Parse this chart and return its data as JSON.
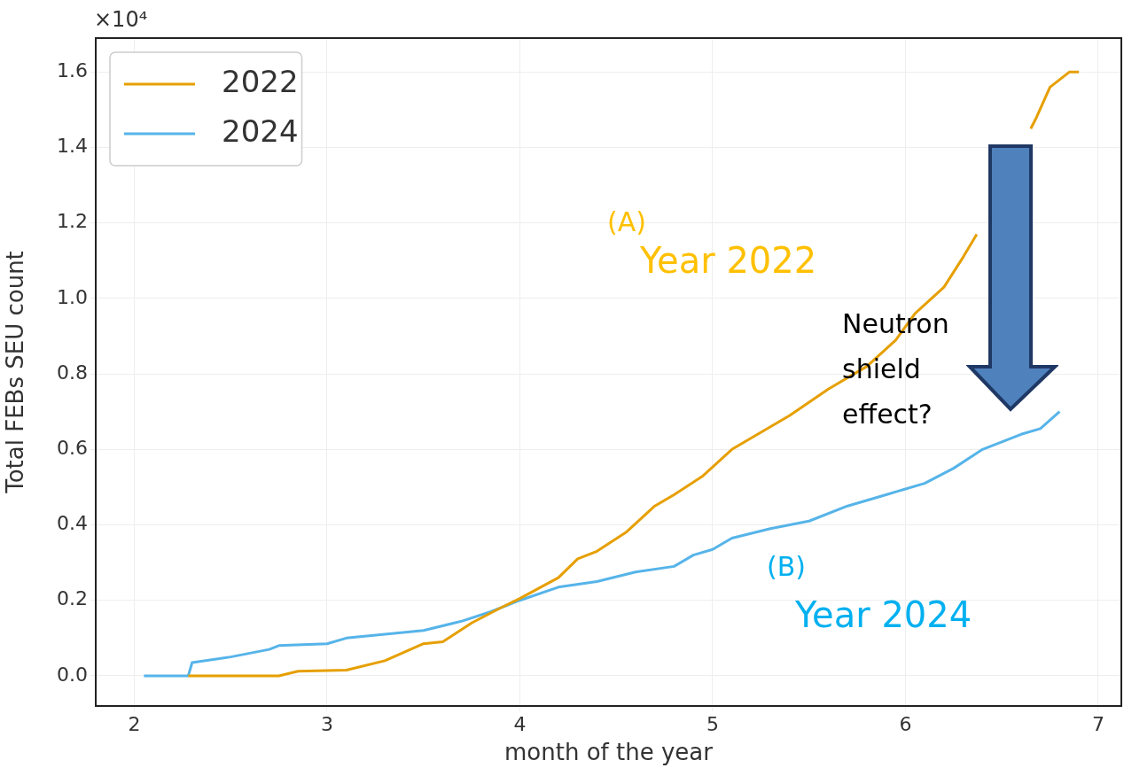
{
  "chart_data": {
    "type": "line",
    "xlabel": "month of the year",
    "ylabel": "Total FEBs SEU count",
    "xlim": [
      1.8,
      7.12
    ],
    "ylim": [
      -0.08,
      1.69
    ],
    "xticks": [
      2,
      3,
      4,
      5,
      6,
      7
    ],
    "yticks": [
      {
        "value": 0,
        "label": "0.0"
      },
      0.2,
      0.4,
      0.6,
      0.8,
      {
        "value": 1,
        "label": "1.0"
      },
      1.2,
      1.4,
      1.6
    ],
    "grid": true,
    "legend": "top left",
    "series": [
      {
        "name": "2022",
        "color": "#e69f00",
        "x": [
          2.28,
          2.75,
          2.85,
          3.1,
          3.3,
          3.5,
          3.6,
          3.75,
          3.9,
          4.0,
          4.2,
          4.3,
          4.4,
          4.55,
          4.7,
          4.8,
          4.95,
          5.1,
          5.3,
          5.4,
          5.6,
          5.8,
          5.95,
          6.05,
          6.2,
          6.3,
          6.37,
          6.48,
          6.55,
          6.65,
          6.68,
          6.75,
          6.8,
          6.85,
          6.9
        ],
        "values": [
          0,
          0,
          0.012,
          0.015,
          0.04,
          0.085,
          0.09,
          0.14,
          0.18,
          0.205,
          0.26,
          0.31,
          0.33,
          0.38,
          0.45,
          0.48,
          0.53,
          0.6,
          0.66,
          0.69,
          0.76,
          0.82,
          0.89,
          0.96,
          1.03,
          1.11,
          1.17,
          null,
          null,
          1.45,
          1.48,
          1.56,
          1.58,
          1.6,
          1.6
        ]
      },
      {
        "name": "2024",
        "color": "#56b4e9",
        "x": [
          2.05,
          2.28,
          2.3,
          2.5,
          2.7,
          2.75,
          3.0,
          3.1,
          3.3,
          3.5,
          3.7,
          3.85,
          4.0,
          4.2,
          4.4,
          4.6,
          4.8,
          4.9,
          5.0,
          5.1,
          5.3,
          5.5,
          5.7,
          5.9,
          6.1,
          6.25,
          6.4,
          6.5,
          6.6,
          6.7,
          6.8
        ],
        "values": [
          0,
          0,
          0.035,
          0.05,
          0.07,
          0.08,
          0.085,
          0.1,
          0.11,
          0.12,
          0.145,
          0.17,
          0.2,
          0.235,
          0.25,
          0.275,
          0.29,
          0.32,
          0.335,
          0.365,
          0.39,
          0.41,
          0.45,
          0.48,
          0.51,
          0.55,
          0.6,
          0.62,
          0.64,
          0.655,
          0.7
        ]
      }
    ],
    "annotations": [
      "×10⁴",
      "(A)",
      "Year 2022",
      "(B)",
      "Year 2024",
      "Neutron\nshield\neffect?"
    ]
  }
}
